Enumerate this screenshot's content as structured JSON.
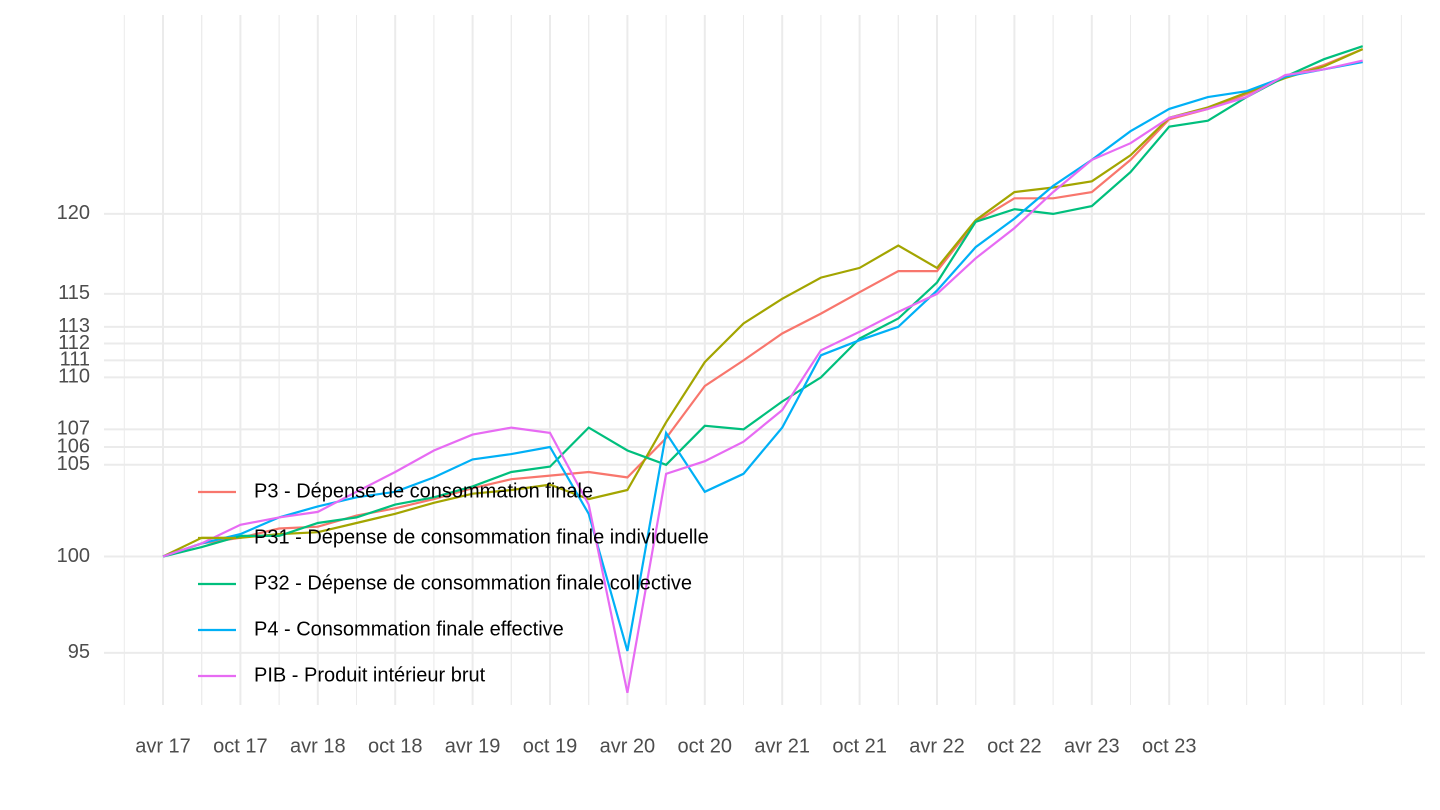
{
  "chart_data": {
    "type": "line",
    "log_scale": true,
    "grid": true,
    "legend_position": "bottom-left",
    "categories": [
      "avr 17",
      null,
      "oct 17",
      null,
      "avr 18",
      null,
      "oct 18",
      null,
      "avr 19",
      null,
      "oct 19",
      null,
      "avr 20",
      null,
      "oct 20",
      null,
      "avr 21",
      null,
      "oct 21",
      null,
      "avr 22",
      null,
      "oct 22",
      null,
      "avr 23",
      null,
      "oct 23",
      null,
      null,
      null,
      null,
      null
    ],
    "ylim": [
      92.4,
      133.4
    ],
    "yticks": [
      95,
      100,
      105,
      106,
      107,
      110,
      111,
      112,
      113,
      115,
      120
    ],
    "series": [
      {
        "name": "P3 - Dépense de consommation finale",
        "color": "#F8766D",
        "values": [
          100,
          100.7,
          101.0,
          101.5,
          101.6,
          102.2,
          102.6,
          103.1,
          103.7,
          104.2,
          104.4,
          104.6,
          104.3,
          106.5,
          109.5,
          111.0,
          112.6,
          113.8,
          115.1,
          116.4,
          116.4,
          119.5,
          121.0,
          121.0,
          121.4,
          123.5,
          126.2,
          126.9,
          127.9,
          129.1,
          129.9,
          131.0
        ]
      },
      {
        "name": "P31 - Dépense de consommation finale individuelle",
        "color": "#A3A500",
        "values": [
          100,
          101.0,
          101.0,
          101.2,
          101.3,
          101.8,
          102.3,
          102.9,
          103.4,
          103.6,
          103.9,
          103.1,
          103.6,
          107.4,
          110.9,
          113.2,
          114.7,
          116.0,
          116.6,
          118.0,
          116.6,
          119.6,
          121.4,
          121.7,
          122.1,
          123.8,
          126.3,
          127.0,
          128.0,
          129.0,
          129.8,
          131.0
        ]
      },
      {
        "name": "P32 - Dépense de consommation finale collective",
        "color": "#00BF7D",
        "values": [
          100,
          100.5,
          101.1,
          101.1,
          101.8,
          102.1,
          102.8,
          103.2,
          103.8,
          104.6,
          104.9,
          107.1,
          105.8,
          105.0,
          107.2,
          107.0,
          108.6,
          110.0,
          112.3,
          113.5,
          115.7,
          119.5,
          120.3,
          120.0,
          120.5,
          122.7,
          125.7,
          126.1,
          127.7,
          129.1,
          130.3,
          131.2
        ]
      },
      {
        "name": "P4 - Consommation finale effective",
        "color": "#00B0F6",
        "values": [
          100,
          100.7,
          101.2,
          102.1,
          102.7,
          103.2,
          103.5,
          104.3,
          105.3,
          105.6,
          106.0,
          102.3,
          95.1,
          106.8,
          103.5,
          104.5,
          107.1,
          111.3,
          112.2,
          113.0,
          115.2,
          117.9,
          119.7,
          121.8,
          123.5,
          125.4,
          126.9,
          127.7,
          128.1,
          129.1,
          129.6,
          130.1
        ]
      },
      {
        "name": "PIB - Produit intérieur brut",
        "color": "#E76BF3",
        "values": [
          100,
          100.7,
          101.7,
          102.1,
          102.4,
          103.5,
          104.6,
          105.8,
          106.7,
          107.1,
          106.8,
          102.8,
          93.0,
          104.5,
          105.2,
          106.3,
          108.1,
          111.6,
          112.7,
          113.9,
          115.0,
          117.2,
          119.1,
          121.4,
          123.5,
          124.6,
          126.3,
          126.9,
          127.7,
          129.2,
          129.6,
          130.2
        ]
      }
    ]
  }
}
